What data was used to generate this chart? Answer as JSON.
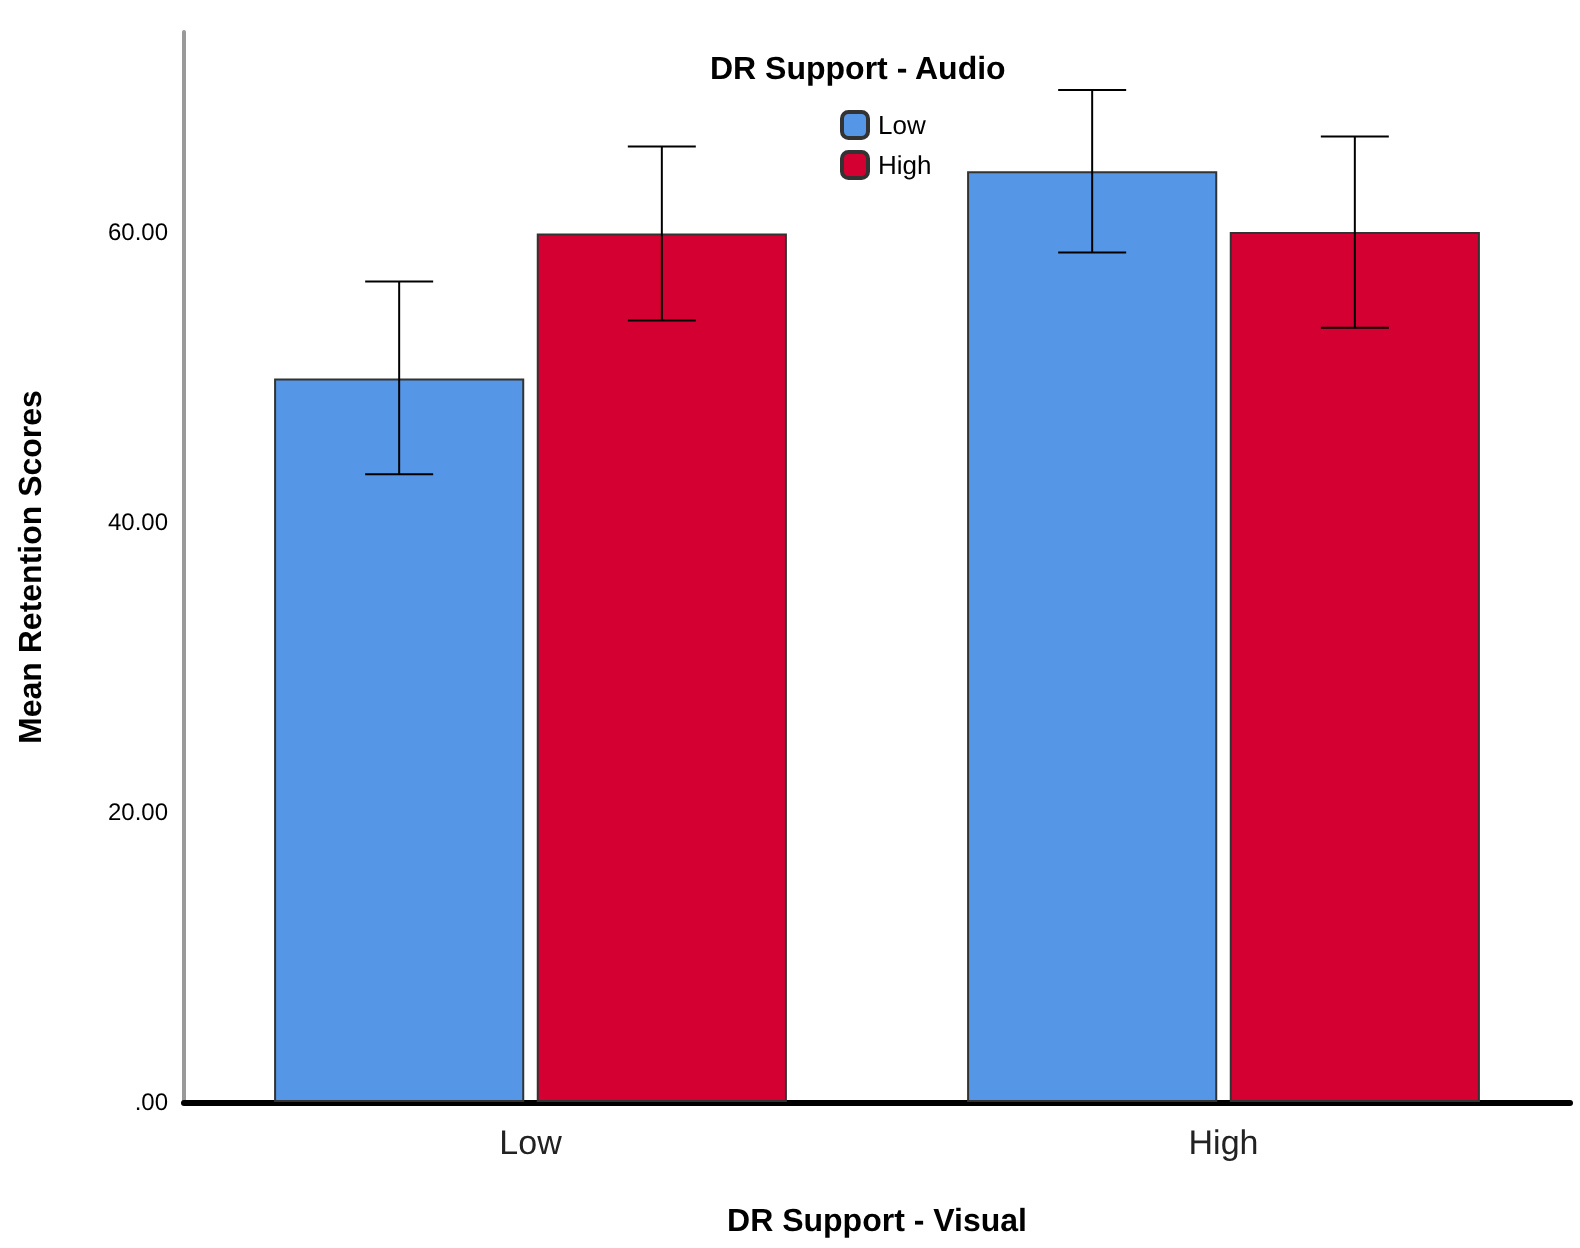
{
  "chart_data": {
    "type": "bar",
    "xlabel": "DR Support - Visual",
    "ylabel": "Mean Retention Scores",
    "legend_title": "DR Support - Audio",
    "categories": [
      "Low",
      "High"
    ],
    "series": [
      {
        "name": "Low",
        "color": "#5596e6",
        "values": [
          49.9,
          64.2
        ],
        "errors": [
          [
            43.3,
            56.6
          ],
          [
            58.6,
            69.8
          ]
        ]
      },
      {
        "name": "High",
        "color": "#d50032",
        "values": [
          59.9,
          60.0
        ],
        "errors": [
          [
            53.9,
            65.9
          ],
          [
            53.4,
            66.6
          ]
        ]
      }
    ],
    "ylim": [
      0,
      73.8
    ],
    "yticks": [
      {
        "value": 0,
        "label": ".00"
      },
      {
        "value": 20,
        "label": "20.00"
      },
      {
        "value": 40,
        "label": "40.00"
      },
      {
        "value": 60,
        "label": "60.00"
      }
    ],
    "grid": false,
    "legend": "top"
  }
}
